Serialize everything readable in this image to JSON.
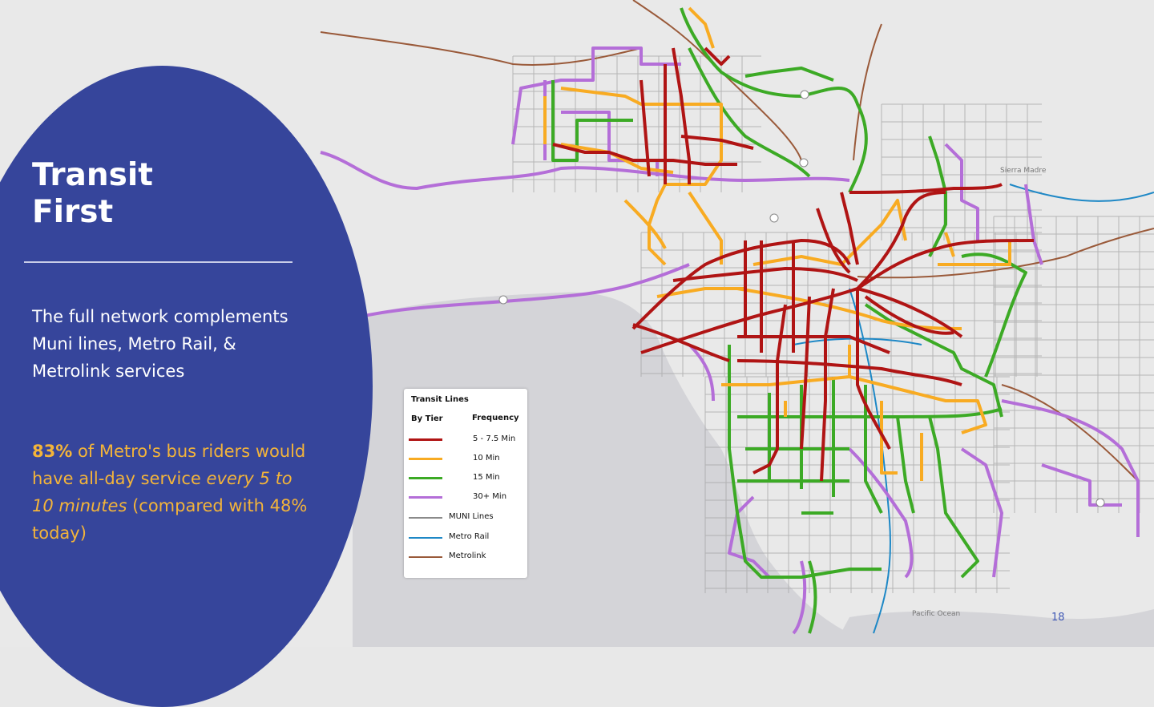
{
  "slide": {
    "title_lines": [
      "Transit",
      "First"
    ],
    "body": "The full network complements Muni lines, Metro Rail, & Metrolink services",
    "highlight": {
      "bold_percent": "83%",
      "text1": " of Metro's bus riders would have all-day service ",
      "italic": "every 5 to 10 minutes",
      "text2": " (compared with 48% today)"
    },
    "page_number": "18"
  },
  "map": {
    "place_labels": [
      "Pacific Ocean",
      "Sierra Madre"
    ],
    "legend": {
      "title": "Transit Lines",
      "col_tier": "By Tier",
      "col_frequency": "Frequency",
      "items": [
        {
          "label": "5 - 7.5 Min",
          "color": "#b01414",
          "style": "thick"
        },
        {
          "label": "10 Min",
          "color": "#f8ab22",
          "style": "thick"
        },
        {
          "label": "15 Min",
          "color": "#3caa25",
          "style": "thick"
        },
        {
          "label": "30+ Min",
          "color": "#b46ed8",
          "style": "thick"
        },
        {
          "label": "MUNI Lines",
          "color": "#8a8a8a",
          "style": "thin"
        },
        {
          "label": "Metro Rail",
          "color": "#1e88c6",
          "style": "thin"
        },
        {
          "label": "Metrolink",
          "color": "#9a5a3a",
          "style": "thin"
        }
      ]
    }
  }
}
